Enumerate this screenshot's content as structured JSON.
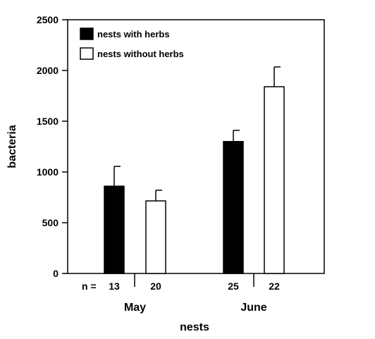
{
  "chart_data": {
    "type": "bar",
    "ylabel": "bacteria",
    "xlabel": "nests",
    "ylim": [
      0,
      2500
    ],
    "yticks": [
      0,
      500,
      1000,
      1500,
      2000,
      2500
    ],
    "n_prefix": "n =",
    "groups": [
      {
        "name": "May",
        "n": [
          "13",
          "20"
        ]
      },
      {
        "name": "June",
        "n": [
          "25",
          "22"
        ]
      }
    ],
    "series": [
      {
        "name": "nests with herbs",
        "color": "#000000",
        "values": [
          860,
          1300
        ],
        "errors": [
          195,
          110
        ]
      },
      {
        "name": "nests without herbs",
        "color": "#ffffff",
        "values": [
          715,
          1840
        ],
        "errors": [
          105,
          195
        ]
      }
    ],
    "legend_position": "top-left",
    "grid": false
  }
}
